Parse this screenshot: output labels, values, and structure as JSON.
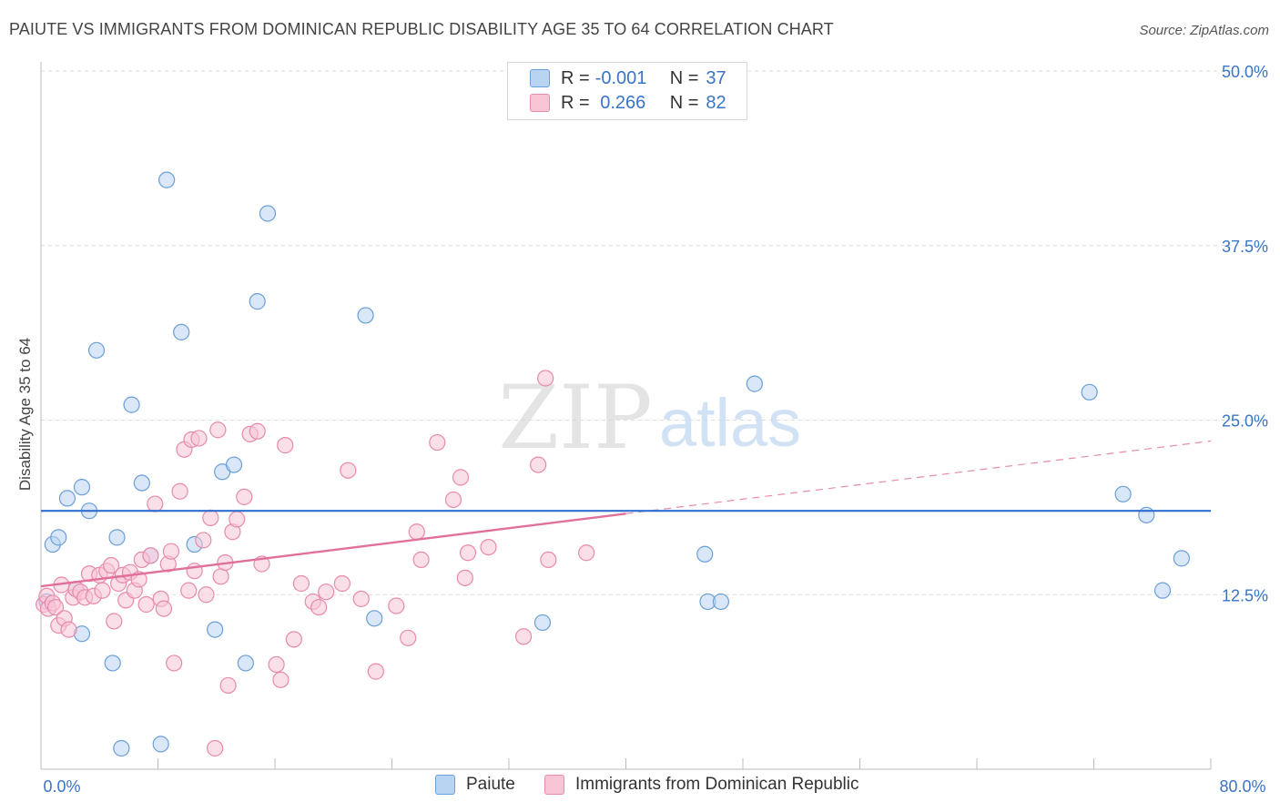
{
  "title": "PAIUTE VS IMMIGRANTS FROM DOMINICAN REPUBLIC DISABILITY AGE 35 TO 64 CORRELATION CHART",
  "source": "Source: ZipAtlas.com",
  "watermark": {
    "zip": "ZIP",
    "atlas": "atlas"
  },
  "legend": {
    "r_label": "R =",
    "n_label": "N =",
    "rows": [
      {
        "r": "-0.001",
        "n": "37"
      },
      {
        "r": " 0.266",
        "n": "82"
      }
    ]
  },
  "bottom_legend": [
    "Paiute",
    "Immigrants from Dominican Republic"
  ],
  "colors": {
    "paiute_fill": "#b9d3f3",
    "paiute_stroke": "#6a9fd8",
    "paiute_line": "#2f6fcf",
    "dom_fill": "#f8c5d5",
    "dom_stroke": "#e88aaa",
    "dom_line": "#e0709a",
    "grid": "#dcdcdc",
    "tick_text": "#3a74c6"
  },
  "chart_data": {
    "type": "scatter",
    "title": "PAIUTE VS IMMIGRANTS FROM DOMINICAN REPUBLIC DISABILITY AGE 35 TO 64 CORRELATION CHART",
    "xlabel": "",
    "ylabel": "Disability Age 35 to 64",
    "xlim": [
      0,
      80
    ],
    "ylim": [
      0,
      50
    ],
    "x_tick_labels": [
      "0.0%",
      "80.0%"
    ],
    "y_ticks": [
      12.5,
      25.0,
      37.5,
      50.0
    ],
    "y_tick_labels": [
      "12.5%",
      "25.0%",
      "37.5%",
      "50.0%"
    ],
    "grid": true,
    "series": [
      {
        "name": "Paiute",
        "r": -0.001,
        "n": 37,
        "trend": {
          "x0": 0,
          "y0": 18.5,
          "x1": 80,
          "y1": 18.5,
          "solid_to": 80
        },
        "points": [
          [
            0.4,
            12.0
          ],
          [
            0.8,
            16.1
          ],
          [
            1.2,
            16.6
          ],
          [
            1.8,
            19.4
          ],
          [
            2.4,
            12.9
          ],
          [
            2.8,
            9.7
          ],
          [
            2.8,
            20.2
          ],
          [
            3.3,
            18.5
          ],
          [
            3.8,
            30.0
          ],
          [
            4.9,
            7.6
          ],
          [
            5.2,
            16.6
          ],
          [
            5.5,
            1.5
          ],
          [
            6.2,
            26.1
          ],
          [
            6.9,
            20.5
          ],
          [
            7.5,
            15.3
          ],
          [
            8.2,
            1.8
          ],
          [
            8.6,
            42.2
          ],
          [
            9.6,
            31.3
          ],
          [
            10.5,
            16.1
          ],
          [
            11.9,
            10.0
          ],
          [
            12.4,
            21.3
          ],
          [
            13.2,
            21.8
          ],
          [
            14.0,
            7.6
          ],
          [
            14.8,
            33.5
          ],
          [
            15.5,
            39.8
          ],
          [
            22.2,
            32.5
          ],
          [
            22.8,
            10.8
          ],
          [
            34.3,
            10.5
          ],
          [
            45.4,
            15.4
          ],
          [
            45.6,
            12.0
          ],
          [
            46.5,
            12.0
          ],
          [
            48.8,
            27.6
          ],
          [
            71.7,
            27.0
          ],
          [
            74.0,
            19.7
          ],
          [
            75.6,
            18.2
          ],
          [
            76.7,
            12.8
          ],
          [
            78.0,
            15.1
          ]
        ]
      },
      {
        "name": "Immigrants from Dominican Republic",
        "r": 0.266,
        "n": 82,
        "trend": {
          "x0": 0,
          "y0": 13.1,
          "x1": 80,
          "y1": 23.5,
          "solid_to": 40
        },
        "points": [
          [
            0.2,
            11.8
          ],
          [
            0.4,
            12.4
          ],
          [
            0.5,
            11.5
          ],
          [
            0.8,
            11.9
          ],
          [
            1.0,
            11.6
          ],
          [
            1.2,
            10.3
          ],
          [
            1.4,
            13.2
          ],
          [
            1.6,
            10.8
          ],
          [
            1.9,
            10.0
          ],
          [
            2.2,
            12.3
          ],
          [
            2.4,
            12.9
          ],
          [
            2.7,
            12.7
          ],
          [
            3.0,
            12.3
          ],
          [
            3.3,
            14.0
          ],
          [
            3.6,
            12.4
          ],
          [
            4.0,
            13.9
          ],
          [
            4.2,
            12.8
          ],
          [
            4.5,
            14.2
          ],
          [
            4.8,
            14.6
          ],
          [
            5.0,
            10.6
          ],
          [
            5.3,
            13.3
          ],
          [
            5.6,
            13.9
          ],
          [
            5.8,
            12.1
          ],
          [
            6.1,
            14.1
          ],
          [
            6.4,
            12.8
          ],
          [
            6.7,
            13.6
          ],
          [
            6.9,
            15.0
          ],
          [
            7.2,
            11.8
          ],
          [
            7.5,
            15.3
          ],
          [
            7.8,
            19.0
          ],
          [
            8.2,
            12.2
          ],
          [
            8.4,
            11.5
          ],
          [
            8.7,
            14.7
          ],
          [
            8.9,
            15.6
          ],
          [
            9.1,
            7.6
          ],
          [
            9.5,
            19.9
          ],
          [
            9.8,
            22.9
          ],
          [
            10.1,
            12.8
          ],
          [
            10.3,
            23.6
          ],
          [
            10.5,
            14.2
          ],
          [
            10.8,
            23.7
          ],
          [
            11.1,
            16.4
          ],
          [
            11.3,
            12.5
          ],
          [
            11.6,
            18.0
          ],
          [
            11.9,
            1.5
          ],
          [
            12.1,
            24.3
          ],
          [
            12.3,
            13.8
          ],
          [
            12.6,
            14.8
          ],
          [
            12.8,
            6.0
          ],
          [
            13.1,
            17.0
          ],
          [
            13.4,
            17.9
          ],
          [
            13.9,
            19.5
          ],
          [
            14.3,
            24.0
          ],
          [
            14.8,
            24.2
          ],
          [
            15.1,
            14.7
          ],
          [
            16.1,
            7.5
          ],
          [
            16.4,
            6.4
          ],
          [
            16.7,
            23.2
          ],
          [
            17.3,
            9.3
          ],
          [
            17.8,
            13.3
          ],
          [
            18.6,
            12.0
          ],
          [
            19.0,
            11.6
          ],
          [
            19.5,
            12.7
          ],
          [
            20.6,
            13.3
          ],
          [
            21.0,
            21.4
          ],
          [
            21.9,
            12.2
          ],
          [
            22.9,
            7.0
          ],
          [
            24.3,
            11.7
          ],
          [
            25.1,
            9.4
          ],
          [
            25.7,
            17.0
          ],
          [
            26.0,
            15.0
          ],
          [
            27.1,
            23.4
          ],
          [
            28.2,
            19.3
          ],
          [
            28.7,
            20.9
          ],
          [
            29.0,
            13.7
          ],
          [
            29.2,
            15.5
          ],
          [
            30.6,
            15.9
          ],
          [
            33.0,
            9.5
          ],
          [
            34.0,
            21.8
          ],
          [
            34.5,
            28.0
          ],
          [
            34.7,
            15.0
          ],
          [
            37.3,
            15.5
          ]
        ]
      }
    ]
  }
}
